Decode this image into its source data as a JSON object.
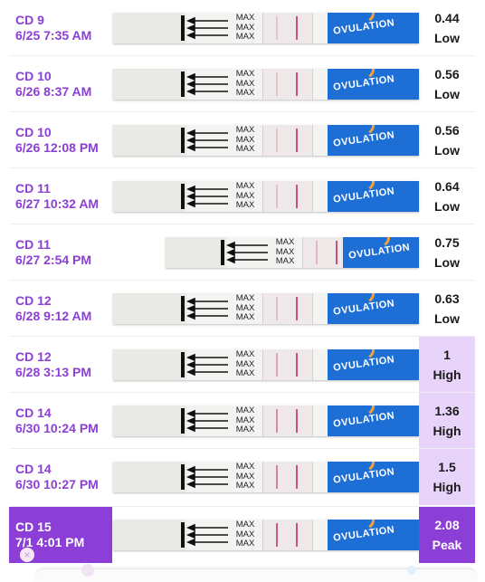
{
  "strip_text": {
    "max_label": [
      "MAX",
      "MAX",
      "MAX"
    ],
    "brand": "OVULATION"
  },
  "colors": {
    "accent": "#8b3fd6",
    "high_bg": "#e8d4fb",
    "peak_bg": "#8b3fd6",
    "strip_brand": "#1d6fd6",
    "test_line": "#c2406f"
  },
  "icons": {
    "close": "close-icon"
  },
  "close_glyph": "×",
  "tests": [
    {
      "cycle_day": "CD 9",
      "datetime": "6/25 7:35 AM",
      "value": "0.44",
      "level": "Low",
      "selected": false
    },
    {
      "cycle_day": "CD 10",
      "datetime": "6/26 8:37 AM",
      "value": "0.56",
      "level": "Low",
      "selected": false
    },
    {
      "cycle_day": "CD 10",
      "datetime": "6/26 12:08 PM",
      "value": "0.56",
      "level": "Low",
      "selected": false
    },
    {
      "cycle_day": "CD 11",
      "datetime": "6/27 10:32 AM",
      "value": "0.64",
      "level": "Low",
      "selected": false
    },
    {
      "cycle_day": "CD 11",
      "datetime": "6/27 2:54 PM",
      "value": "0.75",
      "level": "Low",
      "selected": false
    },
    {
      "cycle_day": "CD 12",
      "datetime": "6/28 9:12 AM",
      "value": "0.63",
      "level": "Low",
      "selected": false
    },
    {
      "cycle_day": "CD 12",
      "datetime": "6/28 3:13 PM",
      "value": "1",
      "level": "High",
      "selected": false
    },
    {
      "cycle_day": "CD 14",
      "datetime": "6/30 10:24 PM",
      "value": "1.36",
      "level": "High",
      "selected": false
    },
    {
      "cycle_day": "CD 14",
      "datetime": "6/30 10:27 PM",
      "value": "1.5",
      "level": "High",
      "selected": false
    },
    {
      "cycle_day": "CD 15",
      "datetime": "7/1 4:01 PM",
      "value": "2.08",
      "level": "Peak",
      "selected": true
    }
  ]
}
